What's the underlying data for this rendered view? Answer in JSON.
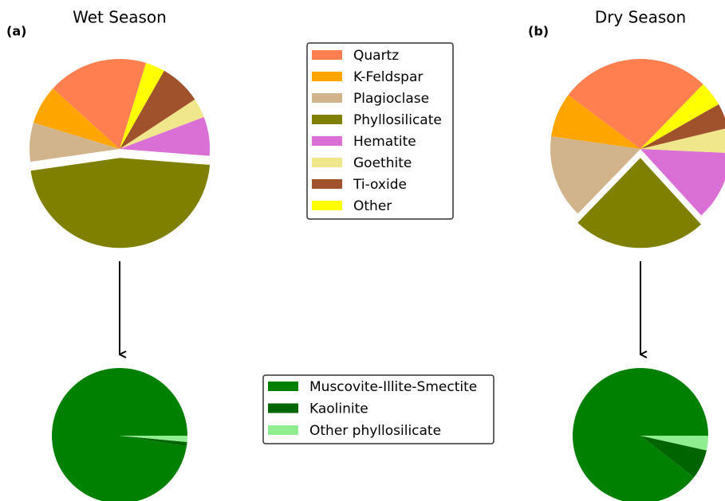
{
  "chart_data": [
    {
      "type": "pie",
      "title": "Wet Season",
      "panel_label": "(a)",
      "categories": [
        "Quartz",
        "K-Feldspar",
        "Plagioclase",
        "Phyllosilicate",
        "Hematite",
        "Goethite",
        "Ti-oxide",
        "Other"
      ],
      "values": [
        18,
        7,
        7,
        46.5,
        7,
        3.5,
        7.5,
        3.5
      ],
      "colors": [
        "#ff7f50",
        "#ffa500",
        "#d2b48c",
        "#808000",
        "#da70d6",
        "#f0e68c",
        "#a0522d",
        "#ffff00"
      ]
    },
    {
      "type": "pie",
      "title": "Dry Season",
      "panel_label": "(b)",
      "categories": [
        "Quartz",
        "K-Feldspar",
        "Plagioclase",
        "Phyllosilicate",
        "Hematite",
        "Goethite",
        "Ti-oxide",
        "Other"
      ],
      "values": [
        27,
        8,
        15,
        24,
        12.5,
        4.5,
        4.5,
        4.5
      ],
      "colors": [
        "#ff7f50",
        "#ffa500",
        "#d2b48c",
        "#808000",
        "#da70d6",
        "#f0e68c",
        "#a0522d",
        "#ffff00"
      ]
    },
    {
      "type": "pie",
      "categories": [
        "Muscovite-Illite-Smectite",
        "Kaolinite",
        "Other phyllosilicate"
      ],
      "values": [
        97.5,
        1,
        1.5
      ],
      "colors": [
        "#008000",
        "#006400",
        "#90ee90"
      ]
    },
    {
      "type": "pie",
      "categories": [
        "Muscovite-Illite-Smectite",
        "Kaolinite",
        "Other phyllosilicate"
      ],
      "values": [
        89.5,
        7,
        3.5
      ],
      "colors": [
        "#008000",
        "#006400",
        "#90ee90"
      ]
    }
  ]
}
